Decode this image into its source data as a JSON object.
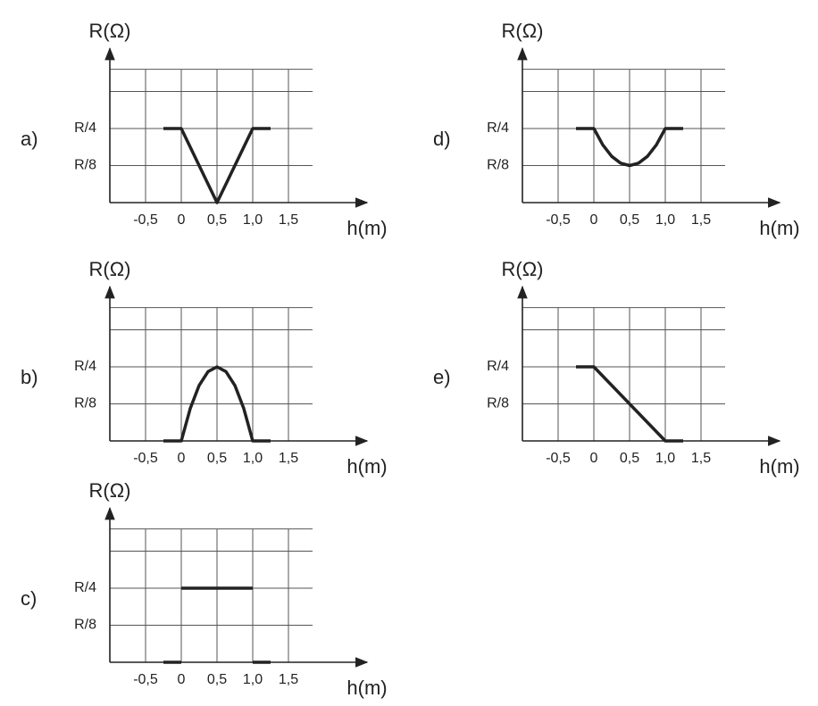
{
  "chart_data": [
    {
      "type": "line",
      "label": "a)",
      "ylabel": "R(Ω)",
      "xlabel": "h(m)",
      "xlim": [
        -1,
        2.6
      ],
      "ylim": [
        0,
        0.52
      ],
      "xticks": [
        {
          "value": -0.5,
          "label": "-0,5"
        },
        0,
        {
          "value": 0.5,
          "label": "0,5"
        },
        {
          "value": 1,
          "label": "1,0"
        },
        {
          "value": 1.5,
          "label": "1,5"
        }
      ],
      "yticks": [
        {
          "value": 0.25,
          "label": "R/4"
        },
        {
          "value": 0.125,
          "label": "R/8"
        }
      ],
      "ygrid": [
        0.125,
        0.25,
        0.375,
        0.45
      ],
      "color": "#222",
      "x": [
        -0.25,
        0,
        0.5,
        1,
        1.25
      ],
      "values": [
        0.25,
        0.25,
        0,
        0.25,
        0.25
      ]
    },
    {
      "type": "line",
      "label": "b)",
      "ylabel": "R(Ω)",
      "xlabel": "h(m)",
      "xlim": [
        -1,
        2.6
      ],
      "ylim": [
        0,
        0.52
      ],
      "xticks": [
        {
          "value": -0.5,
          "label": "-0,5"
        },
        0,
        {
          "value": 0.5,
          "label": "0,5"
        },
        {
          "value": 1,
          "label": "1,0"
        },
        {
          "value": 1.5,
          "label": "1,5"
        }
      ],
      "yticks": [
        {
          "value": 0.25,
          "label": "R/4"
        },
        {
          "value": 0.125,
          "label": "R/8"
        }
      ],
      "ygrid": [
        0.125,
        0.25,
        0.375,
        0.45
      ],
      "color": "#222",
      "x": [
        -0.25,
        0,
        0.125,
        0.25,
        0.375,
        0.5,
        0.625,
        0.75,
        0.875,
        1,
        1.25
      ],
      "values": [
        0,
        0,
        0.109,
        0.1875,
        0.234,
        0.25,
        0.234,
        0.1875,
        0.109,
        0,
        0
      ]
    },
    {
      "type": "line",
      "label": "c)",
      "ylabel": "R(Ω)",
      "xlabel": "h(m)",
      "xlim": [
        -1,
        2.6
      ],
      "ylim": [
        0,
        0.52
      ],
      "xticks": [
        {
          "value": -0.5,
          "label": "-0,5"
        },
        0,
        {
          "value": 0.5,
          "label": "0,5"
        },
        {
          "value": 1,
          "label": "1,0"
        },
        {
          "value": 1.5,
          "label": "1,5"
        }
      ],
      "yticks": [
        {
          "value": 0.25,
          "label": "R/4"
        },
        {
          "value": 0.125,
          "label": "R/8"
        }
      ],
      "ygrid": [
        0.125,
        0.25,
        0.375,
        0.45
      ],
      "color": "#222",
      "x": [
        -0.25,
        0,
        null,
        0,
        1,
        null,
        1,
        1.25
      ],
      "values": [
        0,
        0,
        null,
        0.25,
        0.25,
        null,
        0,
        0
      ]
    },
    {
      "type": "line",
      "label": "d)",
      "ylabel": "R(Ω)",
      "xlabel": "h(m)",
      "xlim": [
        -1,
        2.6
      ],
      "ylim": [
        0,
        0.52
      ],
      "xticks": [
        {
          "value": -0.5,
          "label": "-0,5"
        },
        0,
        {
          "value": 0.5,
          "label": "0,5"
        },
        {
          "value": 1,
          "label": "1,0"
        },
        {
          "value": 1.5,
          "label": "1,5"
        }
      ],
      "yticks": [
        {
          "value": 0.25,
          "label": "R/4"
        },
        {
          "value": 0.125,
          "label": "R/8"
        }
      ],
      "ygrid": [
        0.125,
        0.25,
        0.375,
        0.45
      ],
      "color": "#222",
      "x": [
        -0.25,
        0,
        0.125,
        0.25,
        0.375,
        0.5,
        0.625,
        0.75,
        0.875,
        1,
        1.25
      ],
      "values": [
        0.25,
        0.25,
        0.195,
        0.156,
        0.133,
        0.125,
        0.133,
        0.156,
        0.195,
        0.25,
        0.25
      ]
    },
    {
      "type": "line",
      "label": "e)",
      "ylabel": "R(Ω)",
      "xlabel": "h(m)",
      "xlim": [
        -1,
        2.6
      ],
      "ylim": [
        0,
        0.52
      ],
      "xticks": [
        {
          "value": -0.5,
          "label": "-0,5"
        },
        0,
        {
          "value": 0.5,
          "label": "0,5"
        },
        {
          "value": 1,
          "label": "1,0"
        },
        {
          "value": 1.5,
          "label": "1,5"
        }
      ],
      "yticks": [
        {
          "value": 0.25,
          "label": "R/4"
        },
        {
          "value": 0.125,
          "label": "R/8"
        }
      ],
      "ygrid": [
        0.125,
        0.25,
        0.375,
        0.45
      ],
      "color": "#222",
      "x": [
        -0.25,
        0,
        1,
        1.25
      ],
      "values": [
        0.25,
        0.25,
        0,
        0
      ]
    }
  ]
}
